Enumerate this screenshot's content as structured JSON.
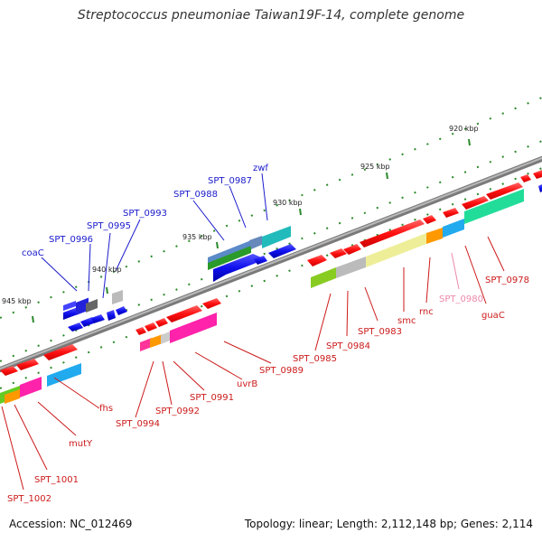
{
  "title": "Streptococcus pneumoniae Taiwan19F-14, complete genome",
  "footer": {
    "accession": "Accession: NC_012469",
    "topology": "Topology: linear; Length: 2,112,148 bp; Genes: 2,114"
  },
  "kbp_ticks": [
    "920 kbp",
    "925 kbp",
    "930 kbp",
    "935 kbp",
    "940 kbp",
    "945 kbp"
  ],
  "gene_labels": [
    {
      "text": "coaC",
      "color": "#1a1acc"
    },
    {
      "text": "SPT_0996",
      "color": "#1a1acc"
    },
    {
      "text": "SPT_0995",
      "color": "#1a1acc"
    },
    {
      "text": "SPT_0993",
      "color": "#1a1acc"
    },
    {
      "text": "SPT_0988",
      "color": "#1a1acc"
    },
    {
      "text": "SPT_0987",
      "color": "#1a1acc"
    },
    {
      "text": "zwf",
      "color": "#1a1acc"
    },
    {
      "text": "SPT_0978",
      "color": "#cc1a1a"
    },
    {
      "text": "guaC",
      "color": "#cc1a1a"
    },
    {
      "text": "SPT_0980",
      "color": "#ee88aa"
    },
    {
      "text": "rnc",
      "color": "#cc1a1a"
    },
    {
      "text": "smc",
      "color": "#cc1a1a"
    },
    {
      "text": "SPT_0983",
      "color": "#cc1a1a"
    },
    {
      "text": "SPT_0984",
      "color": "#cc1a1a"
    },
    {
      "text": "SPT_0985",
      "color": "#cc1a1a"
    },
    {
      "text": "SPT_0989",
      "color": "#cc1a1a"
    },
    {
      "text": "uvrB",
      "color": "#cc1a1a"
    },
    {
      "text": "SPT_0991",
      "color": "#cc1a1a"
    },
    {
      "text": "SPT_0992",
      "color": "#cc1a1a"
    },
    {
      "text": "SPT_0994",
      "color": "#cc1a1a"
    },
    {
      "text": "fhs",
      "color": "#cc1a1a"
    },
    {
      "text": "mutY",
      "color": "#cc1a1a"
    },
    {
      "text": "SPT_1001",
      "color": "#cc1a1a"
    },
    {
      "text": "SPT_1002",
      "color": "#cc1a1a"
    }
  ],
  "colors": {
    "backbone": "#8a8a8a",
    "forward_gene": "#ff1010",
    "reverse_gene": "#1010ee",
    "tick_green": "#2a8a2a"
  }
}
